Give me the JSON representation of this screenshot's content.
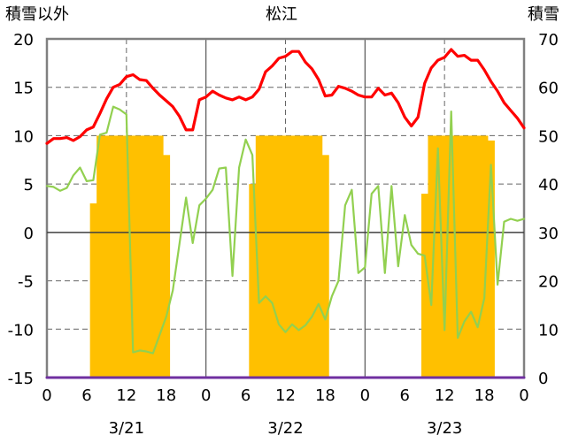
{
  "chart_data": {
    "type": "bar+line",
    "title": "松江",
    "left_axis_label": "積雪以外",
    "right_axis_label": "積雪",
    "left_ylim": [
      -15,
      20
    ],
    "left_ticks": [
      20,
      15,
      10,
      5,
      0,
      -5,
      -10,
      -15
    ],
    "right_ylim": [
      0,
      70
    ],
    "right_ticks": [
      70,
      60,
      50,
      40,
      30,
      20,
      10,
      0
    ],
    "x_tick_labels": [
      "0",
      "6",
      "12",
      "18",
      "0",
      "6",
      "12",
      "18",
      "0",
      "6",
      "12",
      "18",
      "0"
    ],
    "day_labels": [
      "3/21",
      "3/22",
      "3/23"
    ],
    "grid": true,
    "colors": {
      "temperature": "#ff0000",
      "other": "#92d050",
      "snow_depth": "#ffc000",
      "baseline": "#7030a0"
    },
    "series": [
      {
        "key": "temperature",
        "axis": "left",
        "kind": "line",
        "values": [
          9.2,
          9.7,
          9.7,
          9.8,
          9.5,
          9.9,
          10.6,
          10.9,
          12.3,
          13.8,
          15.0,
          15.3,
          16.1,
          16.3,
          15.8,
          15.7,
          14.9,
          14.2,
          13.6,
          13.0,
          12.0,
          10.6,
          10.6,
          13.7,
          14.0,
          14.6,
          14.2,
          13.9,
          13.7,
          14.0,
          13.7,
          14.0,
          14.8,
          16.6,
          17.2,
          18.0,
          18.2,
          18.7,
          18.7,
          17.6,
          16.9,
          15.8,
          14.1,
          14.2,
          15.1,
          14.9,
          14.6,
          14.2,
          14.0,
          14.0,
          14.9,
          14.2,
          14.4,
          13.4,
          11.9,
          11.0,
          11.9,
          15.4,
          17.0,
          17.8,
          18.1,
          18.9,
          18.2,
          18.3,
          17.8,
          17.8,
          16.8,
          15.6,
          14.6,
          13.4,
          12.6,
          11.8,
          10.8
        ]
      },
      {
        "key": "other",
        "axis": "left",
        "kind": "line",
        "values": [
          4.8,
          4.7,
          4.3,
          4.6,
          5.9,
          6.7,
          5.3,
          5.4,
          10.1,
          10.3,
          13.0,
          12.7,
          12.2,
          -12.4,
          -12.2,
          -12.3,
          -12.5,
          -10.6,
          -8.7,
          -6.0,
          -1.2,
          3.6,
          -1.1,
          2.8,
          3.5,
          4.4,
          6.6,
          6.7,
          -4.5,
          6.7,
          9.6,
          8.0,
          -7.3,
          -6.6,
          -7.3,
          -9.5,
          -10.3,
          -9.5,
          -10.1,
          -9.6,
          -8.7,
          -7.4,
          -9.0,
          -6.6,
          -5.0,
          2.8,
          4.4,
          -4.2,
          -3.6,
          4.0,
          4.8,
          -4.2,
          4.8,
          -3.5,
          1.8,
          -1.3,
          -2.2,
          -2.4,
          -7.5,
          8.7,
          -10.1,
          12.5,
          -10.9,
          -9.2,
          -8.2,
          -9.8,
          -6.8,
          7.0,
          -5.4,
          1.1,
          1.4,
          1.2,
          1.4
        ]
      },
      {
        "key": "snow_depth",
        "axis": "right",
        "kind": "bar",
        "values": [
          0,
          0,
          0,
          0,
          0,
          0,
          0,
          36,
          50,
          50,
          50,
          50,
          50,
          50,
          50,
          50,
          50,
          50,
          46,
          0,
          0,
          0,
          0,
          0,
          0,
          0,
          0,
          0,
          0,
          0,
          0,
          40,
          50,
          50,
          50,
          50,
          50,
          50,
          50,
          50,
          50,
          50,
          46,
          0,
          0,
          0,
          0,
          0,
          0,
          0,
          0,
          0,
          0,
          0,
          0,
          0,
          0,
          38,
          50,
          50,
          50,
          50,
          50,
          50,
          50,
          50,
          50,
          49,
          0,
          0,
          0,
          0,
          0
        ]
      },
      {
        "key": "baseline",
        "axis": "left",
        "kind": "line",
        "values": [
          -15,
          -15
        ]
      }
    ]
  }
}
